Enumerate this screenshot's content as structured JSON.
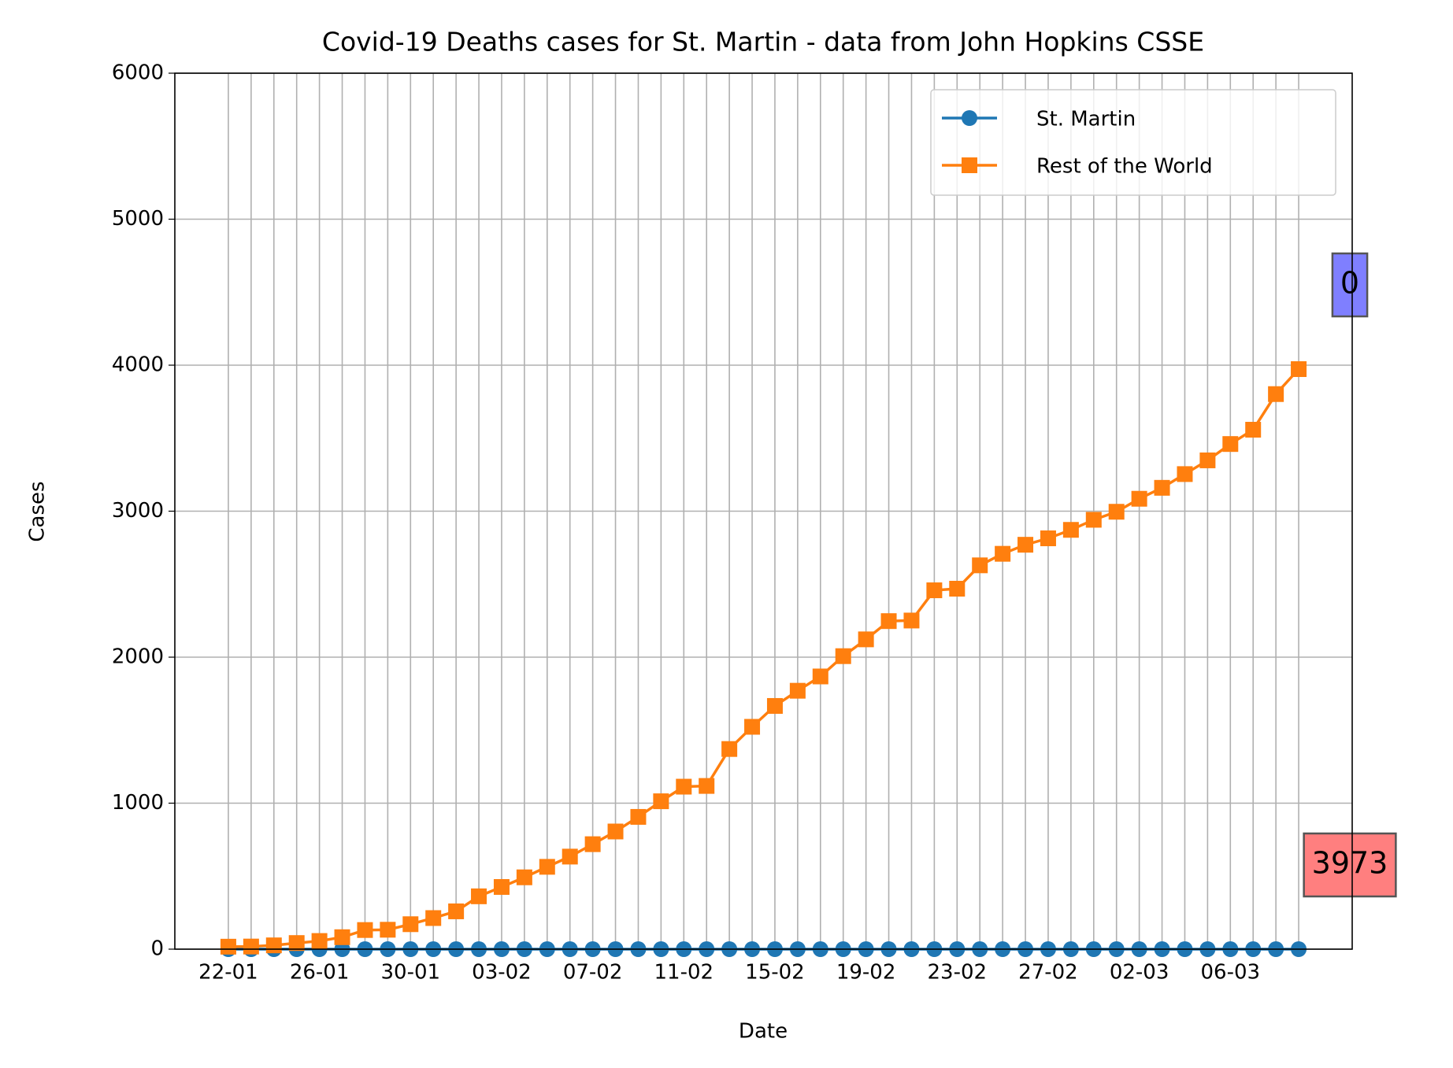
{
  "chart_data": {
    "type": "line",
    "title": "Covid-19 Deaths cases for St. Martin - data from John Hopkins CSSE",
    "x_label": "Date",
    "y_label": "Cases",
    "categories": [
      "22-01",
      null,
      null,
      null,
      "26-01",
      null,
      null,
      null,
      "30-01",
      null,
      null,
      null,
      "03-02",
      null,
      null,
      null,
      "07-02",
      null,
      null,
      null,
      "11-02",
      null,
      null,
      null,
      "15-02",
      null,
      null,
      null,
      "19-02",
      null,
      null,
      null,
      "23-02",
      null,
      null,
      null,
      "27-02",
      null,
      null,
      null,
      "02-03",
      null,
      null,
      null,
      "06-03",
      null,
      null,
      null
    ],
    "series": [
      {
        "name": "St. Martin",
        "color": "#1f77b4",
        "marker": "circle",
        "values": [
          0,
          0,
          0,
          0,
          0,
          0,
          0,
          0,
          0,
          0,
          0,
          0,
          0,
          0,
          0,
          0,
          0,
          0,
          0,
          0,
          0,
          0,
          0,
          0,
          0,
          0,
          0,
          0,
          0,
          0,
          0,
          0,
          0,
          0,
          0,
          0,
          0,
          0,
          0,
          0,
          0,
          0,
          0,
          0,
          0,
          0,
          0,
          0
        ]
      },
      {
        "name": "Rest of the World",
        "color": "#ff7f0e",
        "marker": "square",
        "values": [
          17,
          18,
          26,
          42,
          56,
          82,
          131,
          133,
          171,
          213,
          259,
          362,
          426,
          492,
          564,
          634,
          719,
          806,
          906,
          1013,
          1113,
          1118,
          1371,
          1523,
          1666,
          1770,
          1868,
          2007,
          2122,
          2247,
          2251,
          2458,
          2469,
          2629,
          2708,
          2770,
          2814,
          2872,
          2941,
          2996,
          3085,
          3160,
          3254,
          3348,
          3460,
          3558,
          3802,
          3973
        ]
      }
    ],
    "annotations": [
      {
        "text": "3973",
        "color": "#ff0000"
      },
      {
        "text": "0",
        "color": "#0000ff"
      }
    ],
    "ylim": [
      0,
      6000
    ],
    "yticks": [
      0,
      1000,
      2000,
      3000,
      4000,
      5000,
      6000
    ],
    "grid": true,
    "legend": "upper right"
  }
}
